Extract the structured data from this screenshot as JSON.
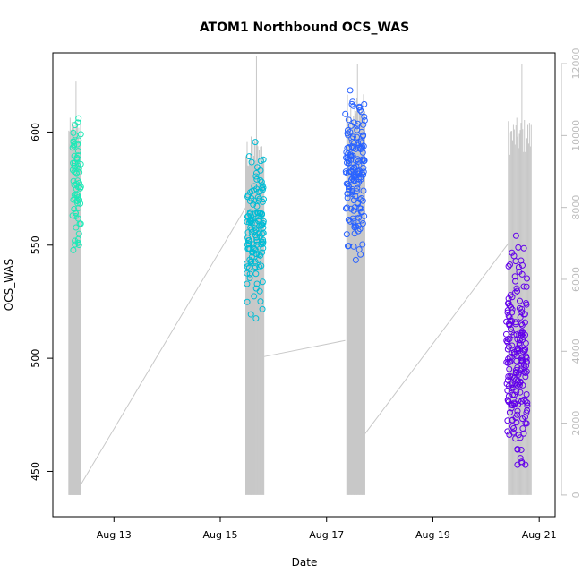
{
  "chart_data": {
    "type": "scatter",
    "title": "ATOM1 Northbound OCS_WAS",
    "xlabel": "Date",
    "ylabel": "OCS_WAS",
    "x_ticks": [
      "Aug 13",
      "Aug 15",
      "Aug 17",
      "Aug 19",
      "Aug 21"
    ],
    "x_tick_values": [
      13,
      15,
      17,
      19,
      21
    ],
    "xlim": [
      11.85,
      21.3
    ],
    "y_left": {
      "ticks": [
        450,
        500,
        550,
        600
      ],
      "ylim": [
        430,
        635
      ]
    },
    "y_right": {
      "ticks": [
        0,
        2000,
        4000,
        6000,
        8000,
        10000,
        12000
      ],
      "ylim": [
        -600,
        12300
      ],
      "color": "#bdbdbd"
    },
    "grid": false,
    "legend": "none",
    "series": [
      {
        "style": "points",
        "axis": "left",
        "colors": [
          "#1de9b6",
          "#00bcd4",
          "#2962ff",
          "#6200ea"
        ],
        "groups": [
          {
            "x_range": [
              12.22,
              12.38
            ],
            "y_range": [
              538,
              616
            ],
            "count": 70
          },
          {
            "x_range": [
              15.5,
              15.82
            ],
            "y_range": [
              510,
              605
            ],
            "count": 140
          },
          {
            "x_range": [
              17.35,
              17.72
            ],
            "y_range": [
              537,
              629
            ],
            "count": 160
          },
          {
            "x_range": [
              20.38,
              20.78
            ],
            "y_range": [
              435,
              563
            ],
            "count": 200
          }
        ]
      },
      {
        "style": "line",
        "axis": "right",
        "color": "#c8c8c8",
        "baseline": 0,
        "clusters": [
          {
            "x_range": [
              12.15,
              12.38
            ],
            "peak": 11500,
            "high": 10500
          },
          {
            "x_range": [
              15.48,
              15.82
            ],
            "peak": 12200,
            "high": 10000
          },
          {
            "x_range": [
              17.38,
              17.72
            ],
            "peak": 12000,
            "high": 11200
          },
          {
            "x_range": [
              20.42,
              20.85
            ],
            "peak": 12000,
            "high": 10500
          }
        ],
        "connectors": [
          {
            "from": [
              12.38,
              300
            ],
            "to": [
              15.48,
              8000
            ]
          },
          {
            "from": [
              15.82,
              3850
            ],
            "to": [
              17.35,
              4300
            ]
          },
          {
            "from": [
              17.72,
              1700
            ],
            "to": [
              20.42,
              7000
            ]
          }
        ]
      }
    ]
  }
}
